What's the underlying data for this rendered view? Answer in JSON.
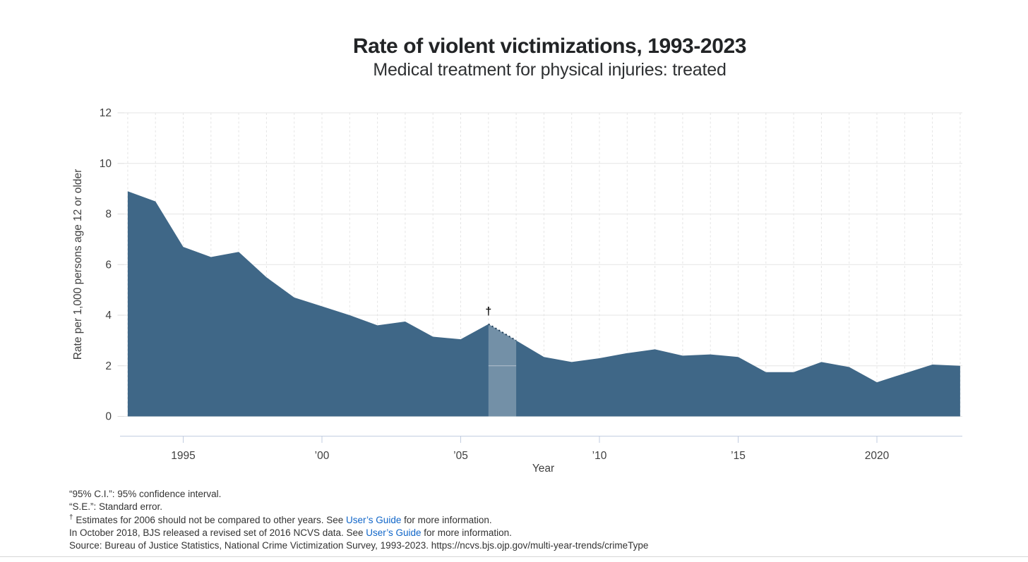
{
  "chart_data": {
    "type": "area",
    "title": "Rate of violent victimizations, 1993-2023",
    "subtitle": "Medical treatment for physical injuries: treated",
    "xlabel": "Year",
    "ylabel": "Rate per 1,000 persons age 12 or older",
    "x": [
      1993,
      1994,
      1995,
      1996,
      1997,
      1998,
      1999,
      2000,
      2001,
      2002,
      2003,
      2004,
      2005,
      2006,
      2007,
      2008,
      2009,
      2010,
      2011,
      2012,
      2013,
      2014,
      2015,
      2016,
      2017,
      2018,
      2019,
      2020,
      2021,
      2022,
      2023
    ],
    "values": [
      8.9,
      8.5,
      6.7,
      6.3,
      6.5,
      5.5,
      4.7,
      4.35,
      4.0,
      3.6,
      3.75,
      3.15,
      3.05,
      3.65,
      3.0,
      2.35,
      2.15,
      2.3,
      2.5,
      2.65,
      2.4,
      2.45,
      2.35,
      1.75,
      1.75,
      2.15,
      1.95,
      1.35,
      1.7,
      2.05,
      2.0
    ],
    "ylim": [
      0,
      12
    ],
    "yticks": [
      0,
      2,
      4,
      6,
      8,
      10,
      12
    ],
    "xticks": [
      {
        "year": 1995,
        "label": "1995"
      },
      {
        "year": 2000,
        "label": "’00"
      },
      {
        "year": 2005,
        "label": "’05"
      },
      {
        "year": 2010,
        "label": "’10"
      },
      {
        "year": 2015,
        "label": "’15"
      },
      {
        "year": 2020,
        "label": "2020"
      }
    ],
    "grid": {
      "horizontal": "solid",
      "vertical": "dashed"
    },
    "annotations": {
      "dagger": {
        "year": 2006,
        "symbol": "†"
      },
      "highlight_band": {
        "from": 2006,
        "to": 2007
      },
      "dotted_segment": {
        "from": 2006,
        "to": 2007
      }
    },
    "colors": {
      "area": "#3f6787",
      "band_overlay": "rgba(255,255,255,0.27)",
      "dotted_line": "#24425c",
      "h_grid": "#e6e6e6",
      "v_grid": "#e4e4e4",
      "axis": "#c2cde0",
      "tick_text": "#3f3f3f",
      "dagger_text": "#111111"
    }
  },
  "footnotes": {
    "link_color": "#0f65c8",
    "lines": [
      {
        "parts": [
          {
            "text": "“95% C.I.”: 95% confidence interval."
          }
        ]
      },
      {
        "parts": [
          {
            "text": "“S.E.”: Standard error."
          }
        ]
      },
      {
        "parts": [
          {
            "sup": "†"
          },
          {
            "text": " Estimates for 2006 should not be compared to other years. See "
          },
          {
            "link": "User’s Guide"
          },
          {
            "text": " for more information."
          }
        ]
      },
      {
        "parts": [
          {
            "text": "In October 2018, BJS released a revised set of 2016 NCVS data. See "
          },
          {
            "link": "User’s Guide"
          },
          {
            "text": " for more information."
          }
        ]
      },
      {
        "parts": [
          {
            "text": "Source: Bureau of Justice Statistics, National Crime Victimization Survey, 1993-2023. https://ncvs.bjs.ojp.gov/multi-year-trends/crimeType"
          }
        ]
      }
    ]
  }
}
